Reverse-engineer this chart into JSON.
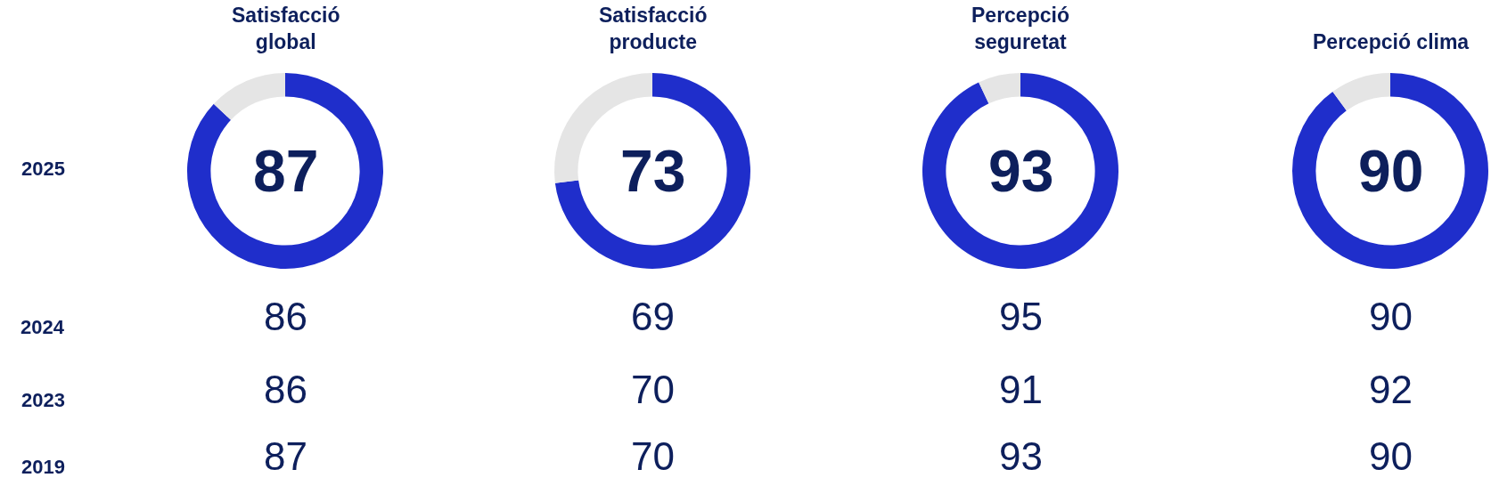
{
  "chart_data": [
    {
      "type": "donut",
      "title": "Satisfacció global",
      "categories": [
        null,
        null
      ],
      "values": [
        87,
        13
      ],
      "colors": [
        "#1f2ecb",
        "#e5e5e5"
      ],
      "value_labels": [
        "87",
        null
      ],
      "annotations": [
        "2025"
      ]
    },
    {
      "type": "donut",
      "title": "Satisfacció producte",
      "categories": [
        null,
        null
      ],
      "values": [
        73,
        27
      ],
      "colors": [
        "#1f2ecb",
        "#e5e5e5"
      ],
      "value_labels": [
        "73",
        null
      ]
    },
    {
      "type": "donut",
      "title": "Percepció seguretat",
      "categories": [
        null,
        null
      ],
      "values": [
        93,
        7
      ],
      "colors": [
        "#1f2ecb",
        "#e5e5e5"
      ],
      "value_labels": [
        "93",
        null
      ]
    },
    {
      "type": "donut",
      "title": "Percepció clima",
      "categories": [
        null,
        null
      ],
      "values": [
        90,
        10
      ],
      "colors": [
        "#1f2ecb",
        "#e5e5e5"
      ],
      "value_labels": [
        "90",
        null
      ]
    },
    {
      "type": "other",
      "annotations": [
        "2024",
        "86",
        "69",
        "95",
        "90",
        "2023",
        "86",
        "70",
        "91",
        "92",
        "2019",
        "87",
        "70",
        "93",
        "90"
      ]
    }
  ]
}
